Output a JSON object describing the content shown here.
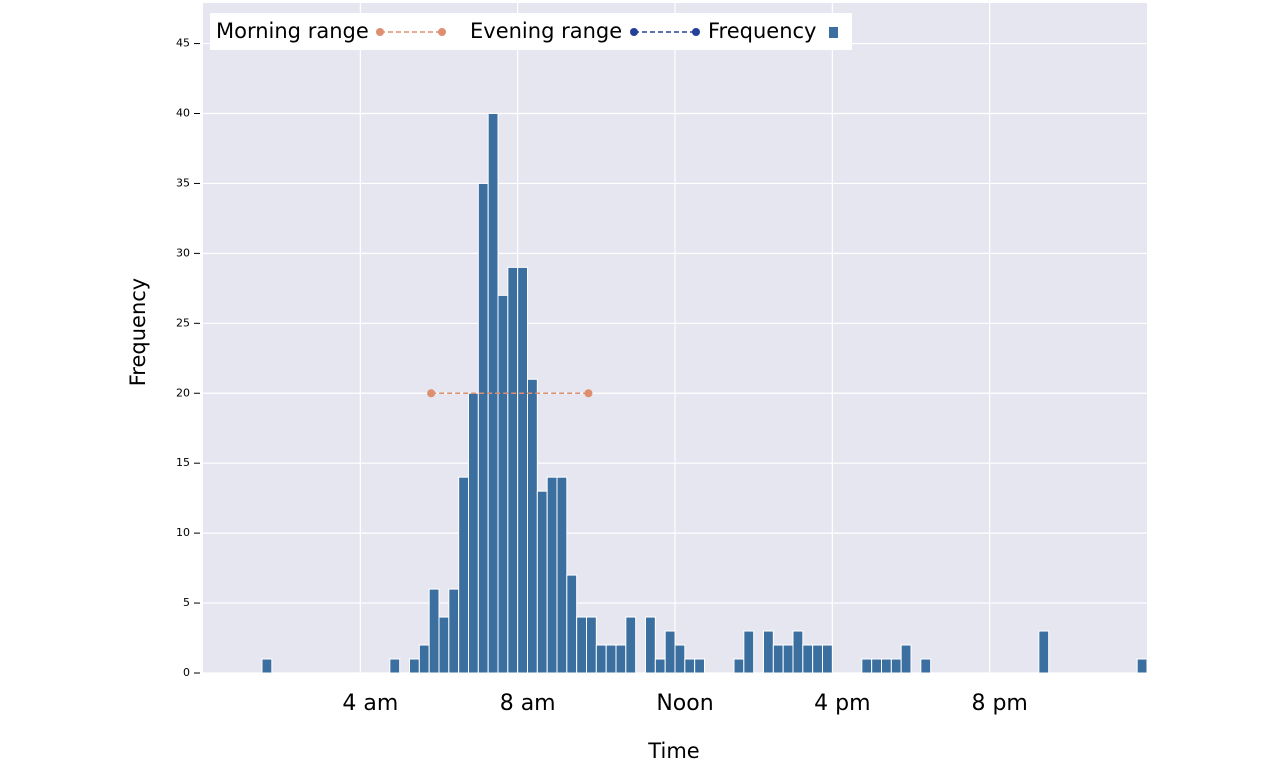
{
  "chart_data": {
    "type": "histogram",
    "xlabel": "Time",
    "ylabel": "Frequency",
    "bins": [
      0,
      0.25,
      0.5,
      0.75,
      1,
      1.25,
      1.5,
      1.75,
      2,
      2.25,
      2.5,
      2.75,
      3,
      3.25,
      3.5,
      3.75,
      4,
      4.25,
      4.5,
      4.75,
      5,
      5.25,
      5.5,
      5.75,
      6,
      6.25,
      6.5,
      6.75,
      7,
      7.25,
      7.5,
      7.75,
      8,
      8.25,
      8.5,
      8.75,
      9,
      9.25,
      9.5,
      9.75,
      10,
      10.25,
      10.5,
      10.75,
      11,
      11.25,
      11.5,
      11.75,
      12,
      12.25,
      12.5,
      12.75,
      13,
      13.25,
      13.5,
      13.75,
      14,
      14.25,
      14.5,
      14.75,
      15,
      15.25,
      15.5,
      15.75,
      16,
      16.25,
      16.5,
      16.75,
      17,
      17.25,
      17.5,
      17.75,
      18,
      18.25,
      18.5,
      18.75,
      19,
      19.25,
      19.5,
      19.75,
      20,
      20.25,
      20.5,
      20.75,
      21,
      21.25,
      21.5,
      21.75,
      22,
      22.25,
      22.5,
      22.75,
      23,
      23.25,
      23.5,
      23.75,
      24
    ],
    "series": [
      {
        "name": "Frequency",
        "color": "#3b6fa0",
        "values": [
          0,
          0,
          0,
          0,
          0,
          0,
          1,
          0,
          0,
          0,
          0,
          0,
          0,
          0,
          0,
          0,
          0,
          0,
          0,
          1,
          0,
          1,
          2,
          6,
          4,
          6,
          14,
          20,
          35,
          40,
          27,
          29,
          29,
          21,
          13,
          14,
          14,
          7,
          4,
          4,
          2,
          2,
          2,
          4,
          0,
          4,
          1,
          3,
          2,
          1,
          1,
          0,
          0,
          0,
          1,
          3,
          0,
          3,
          2,
          2,
          3,
          2,
          2,
          2,
          0,
          0,
          0,
          1,
          1,
          1,
          1,
          2,
          0,
          1,
          0,
          0,
          0,
          0,
          0,
          0,
          0,
          0,
          0,
          0,
          0,
          3,
          0,
          0,
          0,
          0,
          0,
          0,
          0,
          0,
          0,
          1
        ]
      }
    ],
    "lines": [
      {
        "name": "Morning range",
        "color": "#dd8f6f",
        "x": [
          5.8,
          9.8
        ],
        "values": [
          20,
          20
        ]
      },
      {
        "name": "Evening range",
        "color": "#23419a",
        "x": [],
        "values": []
      }
    ],
    "xlim": [
      0,
      24
    ],
    "ylim": [
      0,
      47.9
    ],
    "xticks": [
      {
        "value": 4,
        "label": "4 am"
      },
      {
        "value": 8,
        "label": "8 am"
      },
      {
        "value": 12,
        "label": "Noon"
      },
      {
        "value": 16,
        "label": "4 pm"
      },
      {
        "value": 20,
        "label": "8 pm"
      }
    ],
    "yticks": [
      0,
      5,
      10,
      15,
      20,
      25,
      30,
      35,
      40,
      45
    ],
    "grid": true
  }
}
